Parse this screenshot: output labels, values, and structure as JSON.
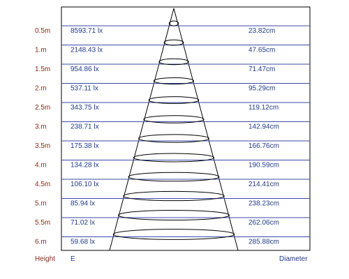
{
  "colors": {
    "height_text": "#8b2a1a",
    "value_text": "#1f3a8a",
    "row_line": "#3a4aa6",
    "frame": "#000000",
    "cone": "#000000"
  },
  "rows": [
    {
      "height": "0.5m",
      "illuminance": "8593.71 lx",
      "diameter": "23.82cm"
    },
    {
      "height": "1.m",
      "illuminance": "2148.43 lx",
      "diameter": "47.65cm"
    },
    {
      "height": "1.5m",
      "illuminance": "954.86 lx",
      "diameter": "71.47cm"
    },
    {
      "height": "2.m",
      "illuminance": "537.11 lx",
      "diameter": "95.29cm"
    },
    {
      "height": "2.5m",
      "illuminance": "343.75 lx",
      "diameter": "119.12cm"
    },
    {
      "height": "3.m",
      "illuminance": "238.71 lx",
      "diameter": "142.94cm"
    },
    {
      "height": "3.5m",
      "illuminance": "175.38 lx",
      "diameter": "166.76cm"
    },
    {
      "height": "4.m",
      "illuminance": "134.28 lx",
      "diameter": "190.59cm"
    },
    {
      "height": "4.5m",
      "illuminance": "106.10 lx",
      "diameter": "214.41cm"
    },
    {
      "height": "5.m",
      "illuminance": "85.94 lx",
      "diameter": "238.23cm"
    },
    {
      "height": "5.5m",
      "illuminance": "71.02 lx",
      "diameter": "262.06cm"
    },
    {
      "height": "6.m",
      "illuminance": "59.68 lx",
      "diameter": "285.88cm"
    }
  ],
  "footer": {
    "height_label": "Height",
    "e_label": "E",
    "diameter_label": "Diameter"
  }
}
